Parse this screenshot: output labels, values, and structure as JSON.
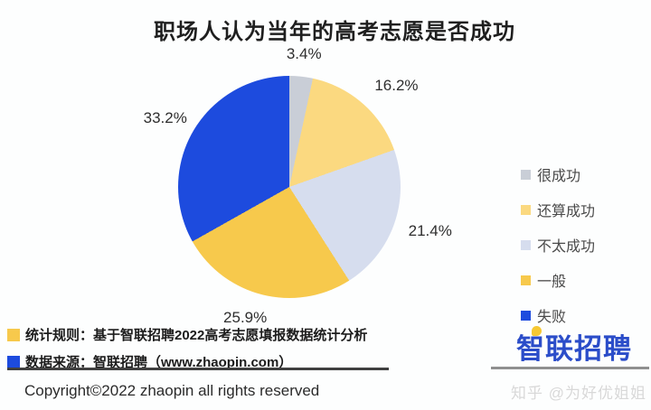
{
  "title": "职场人认为当年的高考志愿是否成功",
  "chart_data": {
    "type": "pie",
    "title": "职场人认为当年的高考志愿是否成功",
    "start_angle_deg": 0,
    "direction": "clockwise",
    "legend_position": "right",
    "slices": [
      {
        "label": "很成功",
        "value": 3.4,
        "display": "3.4%",
        "color": "#C9CED7"
      },
      {
        "label": "还算成功",
        "value": 16.2,
        "display": "16.2%",
        "color": "#FBD980"
      },
      {
        "label": "不太成功",
        "value": 21.4,
        "display": "21.4%",
        "color": "#D6DDEE"
      },
      {
        "label": "一般",
        "value": 25.9,
        "display": "25.9%",
        "color": "#F7C94C"
      },
      {
        "label": "失败",
        "value": 33.2,
        "display": "33.2%",
        "color": "#1D4BDE"
      }
    ]
  },
  "notes": [
    {
      "bullet_color": "#F7C94C",
      "text": "统计规则：基于智联招聘2022高考志愿填报数据统计分析"
    },
    {
      "bullet_color": "#1D4BDE",
      "text": "数据来源：智联招聘（www.zhaopin.com）"
    }
  ],
  "footer": {
    "copyright": "Copyright©2022 zhaopin all rights reserved",
    "watermark": "知乎 @为好优姐姐"
  },
  "logo": {
    "text": "智联招聘",
    "color": "#2B4DC9",
    "accent_color": "#F6C833"
  }
}
